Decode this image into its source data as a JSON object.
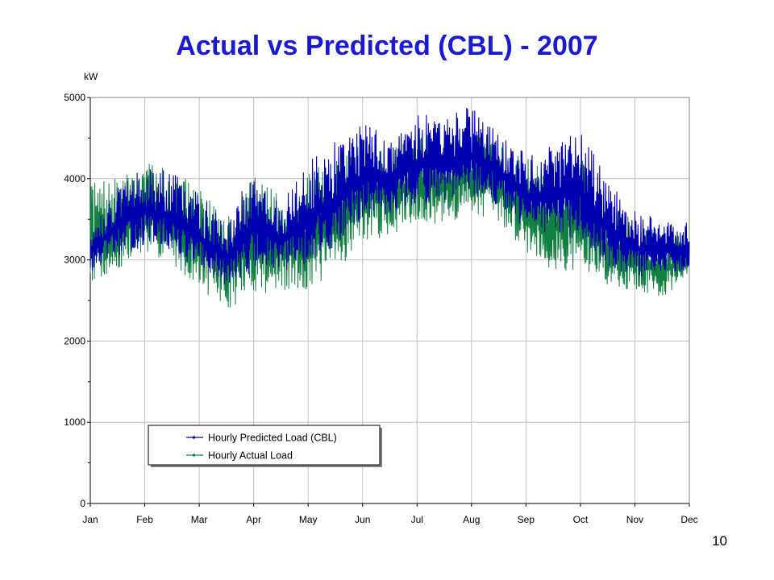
{
  "slide": {
    "title": "Actual vs Predicted (CBL) - 2007",
    "page_number": "10"
  },
  "colors": {
    "title": "#1a1ad6",
    "predicted": "#0000b0",
    "actual": "#108040",
    "grid": "#c0c0c0"
  },
  "chart_data": {
    "type": "line",
    "title": "",
    "xlabel": "",
    "ylabel": "kW",
    "ylim": [
      0,
      5000
    ],
    "yticks": [
      0,
      1000,
      2000,
      3000,
      4000,
      5000
    ],
    "grid": true,
    "legend_position": "bottom-left",
    "x_categories": [
      "Jan",
      "Feb",
      "Mar",
      "Apr",
      "May",
      "Jun",
      "Jul",
      "Aug",
      "Sep",
      "Oct",
      "Nov",
      "Dec"
    ],
    "x_unit": "month",
    "series": [
      {
        "name": "Hourly Predicted Load (CBL)",
        "color": "#0000b0",
        "x": [
          0.0,
          0.5,
          1.0,
          1.5,
          2.0,
          2.5,
          3.0,
          3.5,
          4.0,
          4.5,
          5.0,
          5.5,
          6.0,
          6.5,
          7.0,
          7.5,
          8.0,
          8.5,
          9.0,
          9.5,
          10.0,
          10.5,
          11.0
        ],
        "min": [
          2750,
          2900,
          3000,
          2900,
          2700,
          2500,
          2650,
          2700,
          2700,
          2900,
          3300,
          3400,
          3500,
          3500,
          3600,
          3500,
          3200,
          3100,
          3000,
          2700,
          2650,
          2700,
          2750
        ],
        "max": [
          3400,
          3900,
          4150,
          4100,
          3800,
          3500,
          4100,
          3700,
          4250,
          4450,
          4700,
          4550,
          4800,
          4750,
          4900,
          4600,
          4300,
          4400,
          4600,
          4000,
          3600,
          3500,
          3450
        ]
      },
      {
        "name": "Hourly Actual Load",
        "color": "#108040",
        "x": [
          0.0,
          0.5,
          1.0,
          1.5,
          2.0,
          2.5,
          3.0,
          3.5,
          4.0,
          4.5,
          5.0,
          5.5,
          6.0,
          6.5,
          7.0,
          7.5,
          8.0,
          8.5,
          9.0,
          9.5,
          10.0,
          10.5,
          11.0
        ],
        "min": [
          2500,
          2600,
          2900,
          2750,
          2450,
          2150,
          2350,
          2350,
          2350,
          2600,
          3000,
          3100,
          3300,
          3200,
          3400,
          3300,
          2900,
          2650,
          2600,
          2500,
          2450,
          2400,
          2700
        ],
        "max": [
          3950,
          4000,
          4200,
          4100,
          3900,
          3600,
          4050,
          3800,
          4100,
          4200,
          4550,
          4350,
          4600,
          4500,
          4650,
          4400,
          4250,
          4100,
          4300,
          3700,
          3500,
          3300,
          3300
        ]
      }
    ]
  }
}
